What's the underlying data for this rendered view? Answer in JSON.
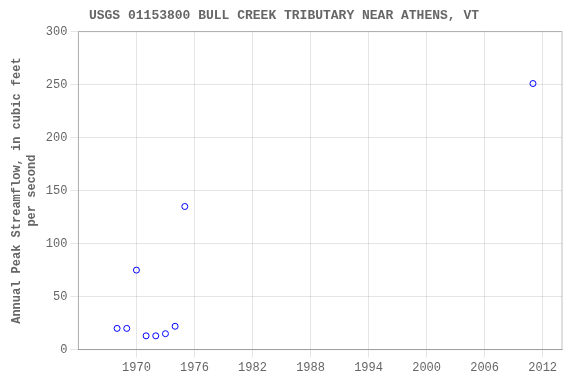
{
  "chart_data": {
    "type": "scatter",
    "title": "USGS 01153800 BULL CREEK TRIBUTARY NEAR ATHENS, VT",
    "ylabel": [
      "Annual Peak Streamflow, in cubic feet",
      "per second"
    ],
    "x": [
      1968,
      1969,
      1970,
      1971,
      1972,
      1973,
      1974,
      1975,
      2011
    ],
    "values": [
      20,
      20,
      75,
      13,
      13,
      15,
      22,
      135,
      251
    ],
    "color": "blue",
    "marker": "circle",
    "xlim": [
      1964,
      2014
    ],
    "ylim": [
      0,
      300
    ],
    "xticks": [
      1970,
      1976,
      1982,
      1988,
      1994,
      2000,
      2006,
      2012
    ],
    "yticks": [
      0,
      50,
      100,
      150,
      200,
      250,
      300
    ],
    "grid": true
  }
}
